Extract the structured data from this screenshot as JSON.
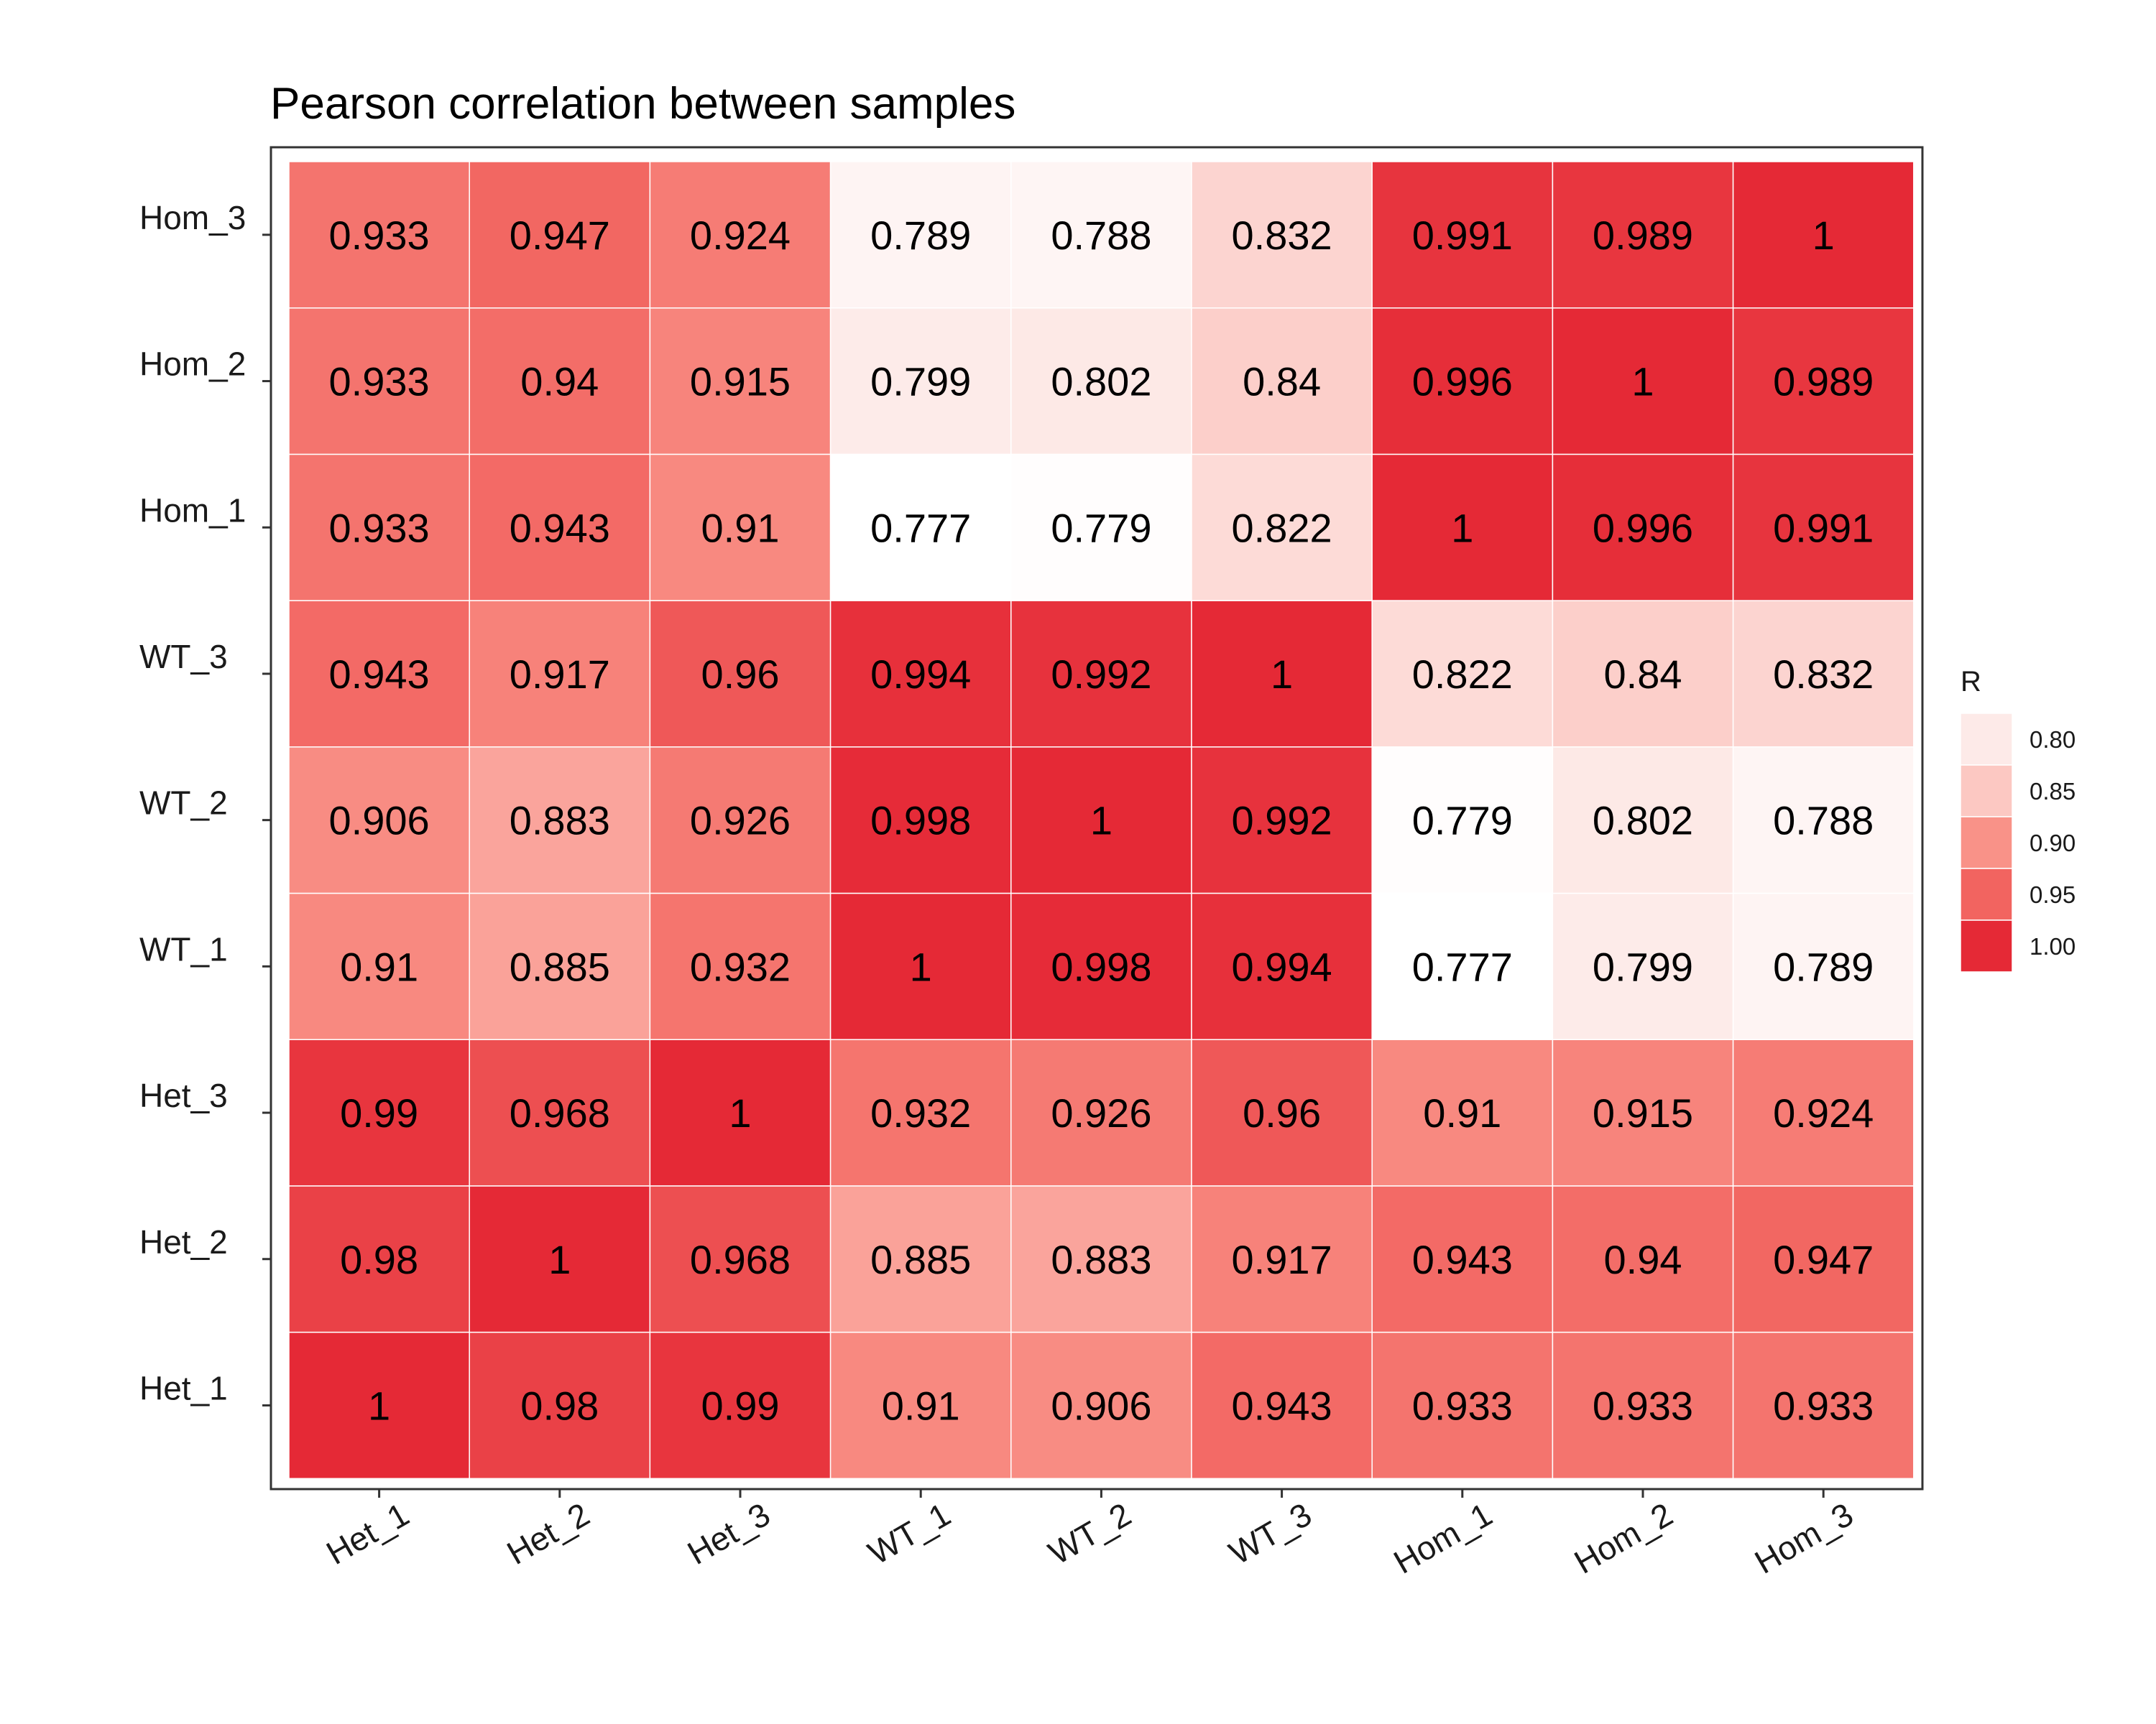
{
  "chart_data": {
    "type": "heatmap",
    "title": "Pearson correlation between samples",
    "x_categories": [
      "Het_1",
      "Het_2",
      "Het_3",
      "WT_1",
      "WT_2",
      "WT_3",
      "Hom_1",
      "Hom_2",
      "Hom_3"
    ],
    "y_categories": [
      "Het_1",
      "Het_2",
      "Het_3",
      "WT_1",
      "WT_2",
      "WT_3",
      "Hom_1",
      "Hom_2",
      "Hom_3"
    ],
    "matrix": [
      [
        "1",
        "0.98",
        "0.99",
        "0.91",
        "0.906",
        "0.943",
        "0.933",
        "0.933",
        "0.933"
      ],
      [
        "0.98",
        "1",
        "0.968",
        "0.885",
        "0.883",
        "0.917",
        "0.943",
        "0.94",
        "0.947"
      ],
      [
        "0.99",
        "0.968",
        "1",
        "0.932",
        "0.926",
        "0.96",
        "0.91",
        "0.915",
        "0.924"
      ],
      [
        "0.91",
        "0.885",
        "0.932",
        "1",
        "0.998",
        "0.994",
        "0.777",
        "0.799",
        "0.789"
      ],
      [
        "0.906",
        "0.883",
        "0.926",
        "0.998",
        "1",
        "0.992",
        "0.779",
        "0.802",
        "0.788"
      ],
      [
        "0.943",
        "0.917",
        "0.96",
        "0.994",
        "0.992",
        "1",
        "0.822",
        "0.84",
        "0.832"
      ],
      [
        "0.933",
        "0.943",
        "0.91",
        "0.777",
        "0.779",
        "0.822",
        "1",
        "0.996",
        "0.991"
      ],
      [
        "0.933",
        "0.94",
        "0.915",
        "0.799",
        "0.802",
        "0.84",
        "0.996",
        "1",
        "0.989"
      ],
      [
        "0.933",
        "0.947",
        "0.924",
        "0.789",
        "0.788",
        "0.832",
        "0.991",
        "0.989",
        "1"
      ]
    ],
    "color_scale": {
      "domain": [
        0.777,
        1.0
      ],
      "low_color": "#ffffff",
      "mid_colors": [
        "#fde0dd",
        "#fbb8b1",
        "#f98e85",
        "#f26461"
      ],
      "high_color": "#e52936"
    },
    "legend": {
      "title": "R",
      "breaks": [
        "0.80",
        "0.85",
        "0.90",
        "0.95",
        "1.00"
      ],
      "position": "right"
    },
    "grid": false
  }
}
